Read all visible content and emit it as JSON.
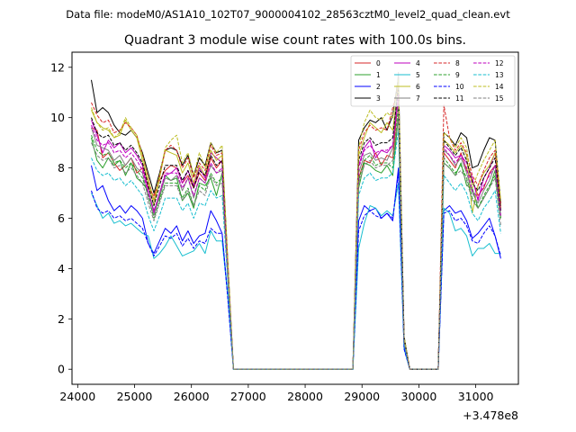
{
  "chart_data": {
    "type": "line",
    "suptitle": "Data file: modeM0/AS1A10_102T07_9000004102_28563cztM0_level2_quad_clean.evt",
    "title": "Quadrant 3 module wise count rates with 100.0s bins.",
    "xlabel": "",
    "ylabel": "",
    "x_offset_label": "+3.478e8",
    "xlim": [
      23900,
      31750
    ],
    "ylim": [
      -0.6,
      12.6
    ],
    "x_ticks": [
      24000,
      25000,
      26000,
      27000,
      28000,
      29000,
      30000,
      31000
    ],
    "x_tick_labels": [
      "24000",
      "25000",
      "26000",
      "27000",
      "28000",
      "29000",
      "30000",
      "31000"
    ],
    "y_ticks": [
      0,
      2,
      4,
      6,
      8,
      10,
      12
    ],
    "y_tick_labels": [
      "0",
      "2",
      "4",
      "6",
      "8",
      "10",
      "12"
    ],
    "legend_position": "upper right",
    "x": [
      24240,
      24340,
      24440,
      24540,
      24640,
      24740,
      24840,
      24940,
      25040,
      25140,
      25240,
      25340,
      25440,
      25540,
      25640,
      25740,
      25840,
      25940,
      26040,
      26140,
      26240,
      26340,
      26440,
      26540,
      26640,
      26740,
      28840,
      28940,
      29040,
      29140,
      29240,
      29340,
      29440,
      29540,
      29640,
      29740,
      29840,
      29940,
      30340,
      30440,
      30540,
      30640,
      30740,
      30840,
      30940,
      31040,
      31140,
      31240,
      31340,
      31440
    ],
    "series": [
      {
        "name": "0",
        "color": "#d62728",
        "dash": "solid",
        "values": [
          9.6,
          9.5,
          8.4,
          8.6,
          8.2,
          7.9,
          8.1,
          8.4,
          7.8,
          8.0,
          7.2,
          6.9,
          7.5,
          7.9,
          8.1,
          8.0,
          7.4,
          7.7,
          7.2,
          7.8,
          7.5,
          8.4,
          8.0,
          8.3,
          4.0,
          0.0,
          0.0,
          7.6,
          8.3,
          8.2,
          8.6,
          8.1,
          8.5,
          8.4,
          10.9,
          1.2,
          0.0,
          0.0,
          0.0,
          8.6,
          8.3,
          8.0,
          8.6,
          7.9,
          7.5,
          6.9,
          7.2,
          7.8,
          8.1,
          6.4
        ]
      },
      {
        "name": "1",
        "color": "#2ca02c",
        "dash": "solid",
        "values": [
          9.2,
          8.3,
          8.0,
          8.4,
          8.1,
          8.3,
          7.7,
          8.2,
          7.6,
          7.4,
          7.1,
          6.3,
          6.8,
          7.7,
          7.5,
          7.6,
          6.7,
          7.0,
          6.4,
          7.4,
          7.3,
          7.6,
          6.9,
          7.8,
          3.6,
          0.0,
          0.0,
          7.2,
          8.2,
          8.1,
          7.9,
          7.8,
          8.1,
          7.7,
          10.1,
          1.0,
          0.0,
          0.0,
          0.0,
          8.2,
          8.0,
          7.7,
          8.2,
          7.3,
          7.2,
          6.4,
          6.8,
          7.2,
          7.9,
          6.0
        ]
      },
      {
        "name": "2",
        "color": "#0000ff",
        "dash": "solid",
        "values": [
          8.1,
          7.1,
          7.3,
          6.7,
          6.3,
          6.5,
          6.2,
          6.5,
          6.3,
          6.0,
          5.0,
          4.6,
          5.1,
          5.6,
          5.4,
          5.7,
          5.1,
          5.5,
          5.0,
          5.3,
          5.4,
          6.3,
          5.9,
          5.4,
          2.9,
          0.0,
          0.0,
          5.9,
          6.5,
          6.3,
          6.4,
          6.0,
          6.2,
          5.9,
          8.0,
          0.9,
          0.0,
          0.0,
          0.0,
          6.3,
          6.5,
          6.2,
          6.3,
          5.9,
          5.2,
          5.4,
          5.7,
          6.0,
          5.3,
          4.4
        ]
      },
      {
        "name": "3",
        "color": "#000000",
        "dash": "solid",
        "values": [
          11.5,
          10.2,
          10.4,
          10.2,
          9.7,
          9.4,
          9.3,
          9.5,
          9.2,
          8.6,
          7.8,
          7.0,
          7.8,
          8.7,
          8.8,
          8.7,
          8.1,
          8.5,
          7.7,
          8.4,
          8.1,
          9.0,
          8.6,
          8.7,
          4.3,
          0.0,
          0.0,
          9.1,
          9.6,
          9.9,
          9.8,
          10.0,
          9.5,
          10.1,
          11.6,
          1.3,
          0.0,
          0.0,
          0.0,
          9.4,
          9.2,
          8.9,
          9.4,
          9.2,
          8.0,
          8.1,
          8.7,
          9.2,
          9.1,
          6.6
        ]
      },
      {
        "name": "4",
        "color": "#bf00bf",
        "dash": "solid",
        "values": [
          9.9,
          9.3,
          8.6,
          9.1,
          8.8,
          9.0,
          8.6,
          8.8,
          8.5,
          8.1,
          7.1,
          6.2,
          7.0,
          7.7,
          7.8,
          8.0,
          7.4,
          7.9,
          7.3,
          8.0,
          7.6,
          8.6,
          8.4,
          8.2,
          4.1,
          0.0,
          0.0,
          8.1,
          8.8,
          9.1,
          8.4,
          8.7,
          8.6,
          8.9,
          10.8,
          1.2,
          0.0,
          0.0,
          0.0,
          8.9,
          8.7,
          8.4,
          8.5,
          8.2,
          7.6,
          6.7,
          7.6,
          8.0,
          8.6,
          6.5
        ]
      },
      {
        "name": "5",
        "color": "#17becf",
        "dash": "solid",
        "values": [
          7.0,
          6.5,
          6.0,
          6.2,
          5.8,
          5.9,
          5.7,
          5.8,
          5.6,
          5.4,
          5.3,
          4.4,
          4.6,
          4.9,
          5.3,
          4.9,
          4.5,
          4.6,
          4.7,
          5.0,
          4.6,
          5.5,
          5.1,
          5.1,
          2.9,
          0.0,
          0.0,
          4.8,
          5.8,
          6.5,
          6.4,
          6.1,
          6.3,
          6.1,
          7.4,
          0.8,
          0.0,
          0.0,
          0.0,
          6.4,
          6.2,
          5.5,
          5.6,
          5.3,
          4.5,
          4.8,
          4.8,
          5.0,
          4.6,
          4.6
        ]
      },
      {
        "name": "6",
        "color": "#bcbd22",
        "dash": "solid",
        "values": [
          10.3,
          9.8,
          9.6,
          9.5,
          9.2,
          9.3,
          9.9,
          9.5,
          9.2,
          8.3,
          7.4,
          6.5,
          7.6,
          8.7,
          8.6,
          8.5,
          7.8,
          8.2,
          7.4,
          8.1,
          7.7,
          8.7,
          8.3,
          8.5,
          4.2,
          0.0,
          0.0,
          8.5,
          9.2,
          9.8,
          9.6,
          9.4,
          9.8,
          9.5,
          11.3,
          1.2,
          0.0,
          0.0,
          0.0,
          9.1,
          8.9,
          8.6,
          8.9,
          8.5,
          6.2,
          7.3,
          7.8,
          8.1,
          8.6,
          6.5
        ]
      },
      {
        "name": "7",
        "color": "#7f7f7f",
        "dash": "solid",
        "values": [
          9.6,
          8.9,
          8.8,
          8.7,
          8.3,
          8.5,
          8.1,
          8.4,
          8.0,
          7.8,
          6.8,
          6.1,
          6.9,
          7.6,
          7.5,
          7.7,
          7.1,
          7.6,
          6.8,
          7.6,
          7.4,
          8.1,
          7.8,
          7.9,
          3.9,
          0.0,
          0.0,
          7.8,
          8.5,
          8.6,
          8.3,
          8.4,
          8.3,
          8.8,
          11.8,
          1.1,
          0.0,
          0.0,
          0.0,
          8.7,
          8.5,
          8.1,
          8.4,
          7.8,
          7.0,
          6.6,
          7.1,
          7.5,
          8.1,
          6.1
        ]
      },
      {
        "name": "8",
        "color": "#d62728",
        "dash": "dashed",
        "values": [
          10.6,
          10.1,
          9.8,
          9.9,
          9.4,
          9.5,
          9.8,
          9.6,
          9.3,
          8.5,
          7.6,
          6.7,
          7.7,
          8.7,
          8.9,
          8.7,
          8.0,
          8.4,
          7.6,
          8.2,
          7.9,
          8.9,
          8.5,
          8.6,
          4.2,
          0.0,
          0.0,
          8.7,
          9.4,
          9.7,
          9.5,
          9.6,
          9.5,
          10.4,
          11.2,
          1.2,
          0.0,
          0.0,
          0.0,
          10.5,
          9.2,
          8.7,
          9.0,
          8.6,
          7.7,
          7.3,
          7.9,
          8.4,
          8.7,
          6.5
        ]
      },
      {
        "name": "9",
        "color": "#2ca02c",
        "dash": "dashed",
        "values": [
          9.3,
          8.7,
          8.5,
          8.6,
          8.2,
          8.3,
          8.0,
          8.2,
          7.9,
          7.6,
          6.9,
          6.0,
          6.7,
          7.4,
          7.4,
          7.4,
          6.8,
          7.2,
          6.5,
          7.3,
          7.1,
          7.8,
          7.4,
          7.6,
          3.7,
          0.0,
          0.0,
          7.5,
          8.3,
          8.5,
          8.1,
          8.2,
          8.2,
          8.0,
          10.5,
          1.1,
          0.0,
          0.0,
          0.0,
          8.4,
          8.1,
          7.8,
          8.1,
          7.6,
          6.8,
          6.4,
          6.9,
          7.3,
          7.7,
          6.0
        ]
      },
      {
        "name": "10",
        "color": "#0000ff",
        "dash": "dashed",
        "values": [
          7.1,
          6.4,
          6.2,
          6.3,
          6.0,
          6.1,
          5.9,
          6.0,
          5.8,
          5.6,
          5.0,
          4.5,
          4.9,
          5.3,
          5.2,
          5.4,
          4.9,
          5.2,
          4.8,
          5.1,
          5.0,
          5.6,
          5.4,
          5.4,
          2.8,
          0.0,
          0.0,
          5.5,
          6.1,
          6.3,
          6.1,
          6.0,
          6.2,
          6.0,
          7.8,
          0.8,
          0.0,
          0.0,
          0.0,
          6.2,
          6.3,
          5.9,
          6.0,
          5.7,
          5.1,
          5.0,
          5.4,
          5.7,
          5.3,
          4.5
        ]
      },
      {
        "name": "11",
        "color": "#000000",
        "dash": "dashed",
        "values": [
          10.0,
          9.4,
          9.2,
          9.3,
          8.9,
          9.0,
          8.7,
          8.9,
          8.6,
          8.2,
          7.3,
          6.5,
          7.3,
          8.1,
          8.1,
          8.1,
          7.5,
          7.9,
          7.2,
          7.9,
          7.7,
          8.5,
          8.1,
          8.3,
          4.1,
          0.0,
          0.0,
          8.3,
          9.0,
          9.2,
          8.9,
          9.0,
          9.0,
          9.2,
          11.2,
          1.2,
          0.0,
          0.0,
          0.0,
          9.1,
          8.8,
          8.5,
          8.8,
          8.3,
          7.4,
          7.1,
          7.6,
          8.0,
          8.4,
          6.3
        ]
      },
      {
        "name": "12",
        "color": "#bf00bf",
        "dash": "dashed",
        "values": [
          9.7,
          9.1,
          8.9,
          9.0,
          8.6,
          8.7,
          8.4,
          8.6,
          8.3,
          7.9,
          7.0,
          6.3,
          7.0,
          7.8,
          7.8,
          7.8,
          7.2,
          7.6,
          6.9,
          7.6,
          7.4,
          8.2,
          7.8,
          8.0,
          3.9,
          0.0,
          0.0,
          8.0,
          8.7,
          8.9,
          8.6,
          8.7,
          8.7,
          8.9,
          10.9,
          1.1,
          0.0,
          0.0,
          0.0,
          8.8,
          8.5,
          8.2,
          8.5,
          8.0,
          7.1,
          6.8,
          7.3,
          7.7,
          8.1,
          6.1
        ]
      },
      {
        "name": "13",
        "color": "#17becf",
        "dash": "dashed",
        "values": [
          8.4,
          7.9,
          7.7,
          7.8,
          7.5,
          7.6,
          7.3,
          7.5,
          7.2,
          6.9,
          6.1,
          5.5,
          6.1,
          6.8,
          6.8,
          6.8,
          6.3,
          6.6,
          6.0,
          6.6,
          6.5,
          7.1,
          6.8,
          6.9,
          3.5,
          0.0,
          0.0,
          6.9,
          7.6,
          7.8,
          7.5,
          7.6,
          7.6,
          7.8,
          9.5,
          1.0,
          0.0,
          0.0,
          0.0,
          7.7,
          7.4,
          7.1,
          7.4,
          7.0,
          6.2,
          5.9,
          6.4,
          6.7,
          7.1,
          5.4
        ]
      },
      {
        "name": "14",
        "color": "#bcbd22",
        "dash": "dashed",
        "values": [
          10.4,
          9.8,
          9.5,
          9.6,
          9.2,
          9.4,
          10.0,
          9.6,
          9.3,
          8.5,
          7.6,
          6.7,
          7.7,
          8.8,
          9.1,
          9.3,
          8.2,
          8.6,
          7.7,
          8.6,
          8.0,
          9.0,
          8.6,
          8.9,
          4.3,
          0.0,
          0.0,
          8.8,
          9.8,
          10.3,
          10.0,
          9.9,
          10.2,
          10.0,
          11.5,
          1.3,
          0.0,
          0.0,
          0.0,
          9.4,
          9.2,
          8.8,
          9.2,
          8.8,
          7.2,
          7.8,
          8.3,
          8.7,
          9.1,
          6.7
        ]
      },
      {
        "name": "15",
        "color": "#7f7f7f",
        "dash": "dashed",
        "values": [
          9.0,
          8.5,
          8.3,
          8.4,
          8.0,
          8.1,
          7.8,
          8.0,
          7.7,
          7.4,
          6.6,
          5.9,
          6.6,
          7.3,
          7.3,
          7.3,
          6.7,
          7.1,
          6.5,
          7.1,
          6.9,
          7.7,
          7.3,
          7.4,
          3.7,
          0.0,
          0.0,
          7.4,
          8.1,
          8.3,
          8.0,
          8.1,
          8.1,
          8.3,
          10.1,
          1.1,
          0.0,
          0.0,
          0.0,
          8.2,
          8.0,
          7.7,
          7.9,
          7.5,
          6.7,
          6.4,
          6.8,
          7.2,
          7.6,
          5.7
        ]
      }
    ]
  }
}
